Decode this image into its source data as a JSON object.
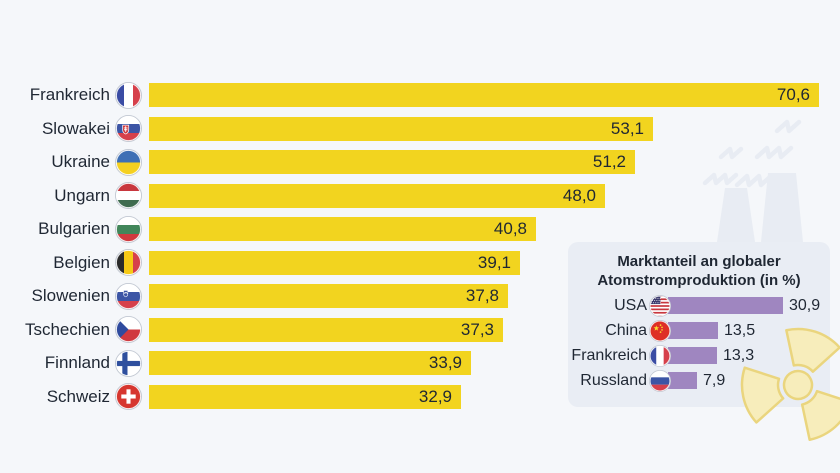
{
  "colors": {
    "page_bg": "#F5F7FA",
    "bar_yellow": "#F2D41F",
    "bar_purple": "#9F86C0",
    "inset_bg": "#E9EDF4",
    "text_dark": "#1F2733",
    "radiation_fill": "#F7EDBB",
    "radiation_stroke": "#EAD57E",
    "watermark": "#E8ECF3"
  },
  "chart_data": [
    {
      "type": "bar",
      "orientation": "horizontal",
      "unit": "%",
      "categories": [
        "Frankreich",
        "Slowakei",
        "Ukraine",
        "Ungarn",
        "Bulgarien",
        "Belgien",
        "Slowenien",
        "Tschechien",
        "Finnland",
        "Schweiz"
      ],
      "values": [
        70.6,
        53.1,
        51.2,
        48.0,
        40.8,
        39.1,
        37.8,
        37.3,
        33.9,
        32.9
      ],
      "value_labels": [
        "70,6",
        "53,1",
        "51,2",
        "48,0",
        "40,8",
        "39,1",
        "37,8",
        "37,3",
        "33,9",
        "32,9"
      ],
      "flags": [
        "fr",
        "sk",
        "ua",
        "hu",
        "bg",
        "be",
        "si",
        "cz",
        "fi",
        "ch"
      ],
      "xlim": [
        0,
        70.6
      ],
      "bar_color_key": "bar_yellow",
      "value_label_position": "inside-end",
      "grid": false,
      "legend": false
    },
    {
      "type": "bar",
      "orientation": "horizontal",
      "title": "Marktanteil an globaler Atomstromproduktion (in %)",
      "title_lines": [
        "Marktanteil an globaler",
        "Atomstromproduktion (in %)"
      ],
      "categories": [
        "USA",
        "China",
        "Frankreich",
        "Russland"
      ],
      "values": [
        30.9,
        13.5,
        13.3,
        7.9
      ],
      "value_labels": [
        "30,9",
        "13,5",
        "13,3",
        "7,9"
      ],
      "flags": [
        "us",
        "cn",
        "fr",
        "ru"
      ],
      "xlim": [
        0,
        30.9
      ],
      "bar_color_key": "bar_purple",
      "value_label_position": "outside-end",
      "grid": false,
      "legend": false
    }
  ]
}
